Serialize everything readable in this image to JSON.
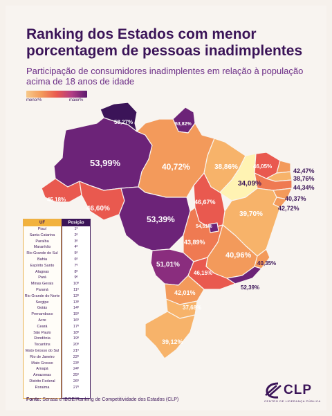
{
  "title_line1": "Ranking dos Estados com menor",
  "title_line2": "porcentagem de pessoas inadimplentes",
  "subtitle": "Participação de consumidores inadimplentes em relação à população acima de 18 anos de idade",
  "legend": {
    "min_label": "menor%",
    "max_label": "maior%"
  },
  "colors": {
    "dark_purple": "#3b1458",
    "purple": "#7b2a7b",
    "magenta": "#b13d86",
    "red": "#e9594f",
    "orange": "#f39a5b",
    "light_orange": "#f7c98a",
    "pale_yellow": "#fff3b3"
  },
  "states": [
    {
      "id": "RR",
      "label": "58,27%",
      "color": "#3b1458"
    },
    {
      "id": "AP",
      "label": "53,82%",
      "color": "#6c2378"
    },
    {
      "id": "AM",
      "label": "53,99%",
      "color": "#6c2378"
    },
    {
      "id": "PA",
      "label": "40,72%",
      "color": "#f39a5b"
    },
    {
      "id": "MA",
      "label": "38,86%",
      "color": "#f7b36a"
    },
    {
      "id": "PI",
      "label": "34,09%",
      "color": "#fff3b3"
    },
    {
      "id": "CE",
      "label": "46,05%",
      "color": "#e9594f"
    },
    {
      "id": "RN",
      "label": "42,47%",
      "color": "#f39a5b"
    },
    {
      "id": "PB",
      "label": "38,76%",
      "color": "#f7b36a"
    },
    {
      "id": "PE",
      "label": "44,34%",
      "color": "#ef7a52"
    },
    {
      "id": "AL",
      "label": "40,37%",
      "color": "#f39a5b"
    },
    {
      "id": "SE",
      "label": "42,72%",
      "color": "#f39a5b"
    },
    {
      "id": "BA",
      "label": "39,70%",
      "color": "#f7b36a"
    },
    {
      "id": "AC",
      "label": "45,18%",
      "color": "#e9594f"
    },
    {
      "id": "RO",
      "label": "46,60%",
      "color": "#e9594f"
    },
    {
      "id": "MT",
      "label": "53,39%",
      "color": "#6c2378"
    },
    {
      "id": "TO",
      "label": "46,67%",
      "color": "#e9594f"
    },
    {
      "id": "DF",
      "label": "54,51%",
      "color": "#6c2378"
    },
    {
      "id": "GO",
      "label": "43,89%",
      "color": "#ef7a52"
    },
    {
      "id": "MG",
      "label": "40,96%",
      "color": "#f39a5b"
    },
    {
      "id": "ES",
      "label": "40,35%",
      "color": "#f39a5b"
    },
    {
      "id": "MS",
      "label": "51,01%",
      "color": "#8a2d7e"
    },
    {
      "id": "SP",
      "label": "46,15%",
      "color": "#e9594f"
    },
    {
      "id": "RJ",
      "label": "52,39%",
      "color": "#6c2378"
    },
    {
      "id": "PR",
      "label": "42,01%",
      "color": "#f39a5b"
    },
    {
      "id": "SC",
      "label": "37,68%",
      "color": "#f7b36a"
    },
    {
      "id": "RS",
      "label": "39,12%",
      "color": "#f7b36a"
    }
  ],
  "table": {
    "uf_header": "UF",
    "pos_header": "Posição",
    "rows": [
      {
        "uf": "Piauí",
        "pos": "1º"
      },
      {
        "uf": "Santa Catarina",
        "pos": "2º"
      },
      {
        "uf": "Paraíba",
        "pos": "3º"
      },
      {
        "uf": "Maranhão",
        "pos": "4º"
      },
      {
        "uf": "Rio Grande do Sul",
        "pos": "5º"
      },
      {
        "uf": "Bahia",
        "pos": "6º"
      },
      {
        "uf": "Espírito Santo",
        "pos": "7º"
      },
      {
        "uf": "Alagoas",
        "pos": "8º"
      },
      {
        "uf": "Pará",
        "pos": "9º"
      },
      {
        "uf": "Minas Gerais",
        "pos": "10º"
      },
      {
        "uf": "Paraná",
        "pos": "11º"
      },
      {
        "uf": "Rio Grande do Norte",
        "pos": "12º"
      },
      {
        "uf": "Sergipe",
        "pos": "13º"
      },
      {
        "uf": "Goiás",
        "pos": "14º"
      },
      {
        "uf": "Pernambuco",
        "pos": "15º"
      },
      {
        "uf": "Acre",
        "pos": "16º"
      },
      {
        "uf": "Ceará",
        "pos": "17º"
      },
      {
        "uf": "São Paulo",
        "pos": "18º"
      },
      {
        "uf": "Rondônia",
        "pos": "19º"
      },
      {
        "uf": "Tocantins",
        "pos": "20º"
      },
      {
        "uf": "Mato Grosso do Sul",
        "pos": "21º"
      },
      {
        "uf": "Rio de Janeiro",
        "pos": "22º"
      },
      {
        "uf": "Mato Grosso",
        "pos": "23º"
      },
      {
        "uf": "Amapá",
        "pos": "24º"
      },
      {
        "uf": "Amazonas",
        "pos": "25º"
      },
      {
        "uf": "Distrito Federal",
        "pos": "26º"
      },
      {
        "uf": "Roraima",
        "pos": "27º"
      }
    ]
  },
  "source": {
    "label": "Fonte:",
    "text": " Serasa e IBGE/Ranking de Competitividade dos Estados (CLP)"
  },
  "logo": {
    "text": "CLP",
    "subtitle": "CENTRO DE LIDERANÇA PÚBLICA"
  }
}
